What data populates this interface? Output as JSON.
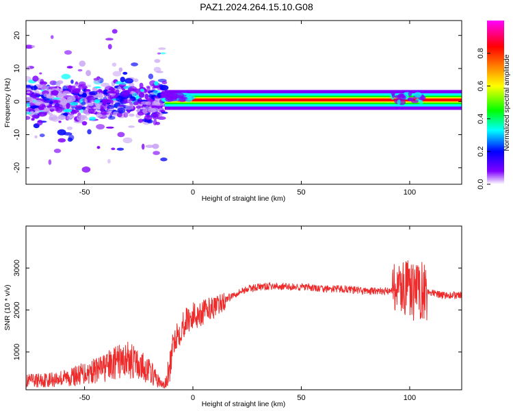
{
  "title": "PAZ1.2024.264.15.10.G08",
  "colors": {
    "snr_line": "#ee2a2a",
    "colormap": [
      "#ffffff",
      "#8000ff",
      "#0000ff",
      "#00ffff",
      "#00ff00",
      "#ffff00",
      "#ff8000",
      "#ff0000",
      "#ff00ff"
    ]
  },
  "chart_data": [
    {
      "type": "heatmap",
      "title": "PAZ1.2024.264.15.10.G08",
      "xlabel": "Height of straight line (km)",
      "ylabel": "Frequency (Hz)",
      "xlim": [
        -77,
        124
      ],
      "ylim": [
        -25,
        24.5
      ],
      "xticks": [
        "-50",
        "0",
        "50",
        "100"
      ],
      "yticks": [
        "-20",
        "-10",
        "0",
        "10",
        "20"
      ],
      "colorbar": {
        "label": "Normalized spectral amplitude",
        "range": [
          0.0,
          1.0
        ],
        "ticks": [
          "0.0",
          "0.2",
          "0.4",
          "0.6",
          "0.8"
        ]
      },
      "features": [
        {
          "region": "scattered spectrum",
          "x_range": [
            -77,
            -13
          ],
          "freq_spread": [
            -8,
            8
          ],
          "amplitude": 0.1
        },
        {
          "region": "narrow band",
          "x_range": [
            -13,
            124
          ],
          "freq_center": 0.5,
          "amplitude": 0.95
        }
      ]
    },
    {
      "type": "line",
      "xlabel": "Height of straight line (km)",
      "ylabel": "SNR (10 * v/v)",
      "xlim": [
        -77,
        124
      ],
      "ylim": [
        100,
        4000
      ],
      "xticks": [
        "-50",
        "0",
        "50",
        "100"
      ],
      "yticks": [
        "1000",
        "2000",
        "3000"
      ],
      "series": [
        {
          "x": [
            -77,
            -70,
            -65,
            -60,
            -55,
            -50,
            -45,
            -40,
            -35,
            -30,
            -25,
            -20,
            -15,
            -13,
            -11,
            -9,
            -8,
            -6,
            -4,
            -2,
            0,
            2,
            4,
            6,
            8,
            10,
            12,
            15,
            20,
            25,
            30,
            35,
            40,
            45,
            50,
            60,
            70,
            80,
            90,
            93,
            95,
            97,
            100,
            103,
            104,
            106,
            110,
            115,
            120,
            124
          ],
          "y": [
            300,
            330,
            350,
            380,
            420,
            500,
            560,
            650,
            750,
            820,
            700,
            550,
            250,
            200,
            500,
            1200,
            1400,
            1500,
            1700,
            1800,
            1850,
            1900,
            1950,
            2000,
            2050,
            2050,
            2100,
            2250,
            2400,
            2500,
            2550,
            2560,
            2560,
            2550,
            2550,
            2500,
            2500,
            2450,
            2450,
            2500,
            2600,
            2500,
            2500,
            2400,
            2450,
            2500,
            2400,
            2350,
            2350,
            2350
          ]
        }
      ]
    }
  ]
}
